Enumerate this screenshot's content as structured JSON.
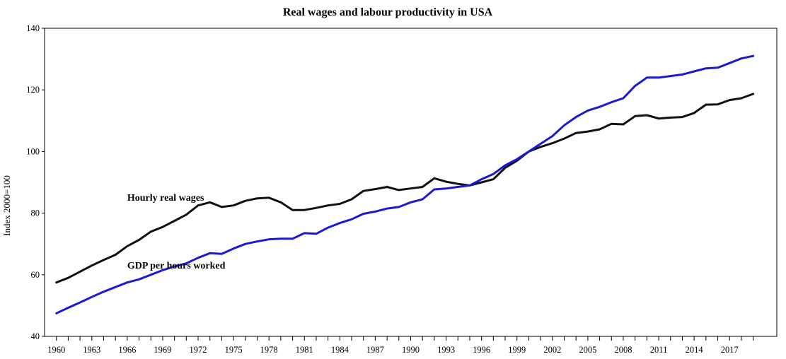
{
  "chart_data": {
    "type": "line",
    "title": "Real wages and labour productivity in USA",
    "xlabel": "",
    "ylabel": "Index 2000=100",
    "ylim": [
      40,
      140
    ],
    "yticks": [
      40,
      60,
      80,
      100,
      120,
      140
    ],
    "xlim": [
      1959,
      2021
    ],
    "xtick_labels": [
      "1960",
      "1963",
      "1966",
      "1969",
      "1972",
      "1975",
      "1978",
      "1981",
      "1984",
      "1987",
      "1990",
      "1993",
      "1996",
      "1999",
      "2002",
      "2005",
      "2008",
      "2011",
      "2014",
      "2017"
    ],
    "x": [
      1960,
      1961,
      1962,
      1963,
      1964,
      1965,
      1966,
      1967,
      1968,
      1969,
      1970,
      1971,
      1972,
      1973,
      1974,
      1975,
      1976,
      1977,
      1978,
      1979,
      1980,
      1981,
      1982,
      1983,
      1984,
      1985,
      1986,
      1987,
      1988,
      1989,
      1990,
      1991,
      1992,
      1993,
      1994,
      1995,
      1996,
      1997,
      1998,
      1999,
      2000,
      2001,
      2002,
      2003,
      2004,
      2005,
      2006,
      2007,
      2008,
      2009,
      2010,
      2011,
      2012,
      2013,
      2014,
      2015,
      2016,
      2017,
      2018,
      2019
    ],
    "grid": false,
    "legend": "none (series labeled inline)",
    "series": [
      {
        "name": "Hourly real wages",
        "color": "#111111",
        "values": [
          57.5,
          59.0,
          61.0,
          63.0,
          64.8,
          66.5,
          69.3,
          71.3,
          74.0,
          75.5,
          77.5,
          79.5,
          82.5,
          83.5,
          82.0,
          82.5,
          84.0,
          84.8,
          85.0,
          83.5,
          81.0,
          81.0,
          81.7,
          82.5,
          83.0,
          84.5,
          87.2,
          87.8,
          88.5,
          87.5,
          88.0,
          88.5,
          91.3,
          90.2,
          89.5,
          89.0,
          90.0,
          91.0,
          94.7,
          97.0,
          100.0,
          101.5,
          102.7,
          104.2,
          106.0,
          106.5,
          107.2,
          109.0,
          108.8,
          111.5,
          111.8,
          110.7,
          111.0,
          111.2,
          112.5,
          115.2,
          115.3,
          116.7,
          117.3,
          118.7
        ],
        "label_position": [
          1966,
          84
        ]
      },
      {
        "name": "GDP per hours worked",
        "color": "#1a1ad4",
        "values": [
          47.5,
          49.3,
          51.0,
          52.8,
          54.5,
          56.0,
          57.5,
          58.5,
          60.0,
          61.5,
          62.7,
          63.7,
          65.5,
          67.0,
          66.8,
          68.5,
          70.0,
          70.8,
          71.5,
          71.7,
          71.7,
          73.5,
          73.3,
          75.3,
          76.8,
          78.0,
          79.8,
          80.5,
          81.5,
          82.0,
          83.5,
          84.5,
          87.7,
          88.0,
          88.5,
          89.0,
          91.0,
          92.7,
          95.5,
          97.5,
          100.0,
          102.5,
          105.0,
          108.5,
          111.2,
          113.3,
          114.5,
          116.0,
          117.3,
          121.3,
          124.0,
          124.0,
          124.5,
          125.0,
          126.0,
          127.0,
          127.2,
          128.7,
          130.2,
          131.0
        ],
        "label_position": [
          1966,
          62
        ]
      }
    ]
  }
}
